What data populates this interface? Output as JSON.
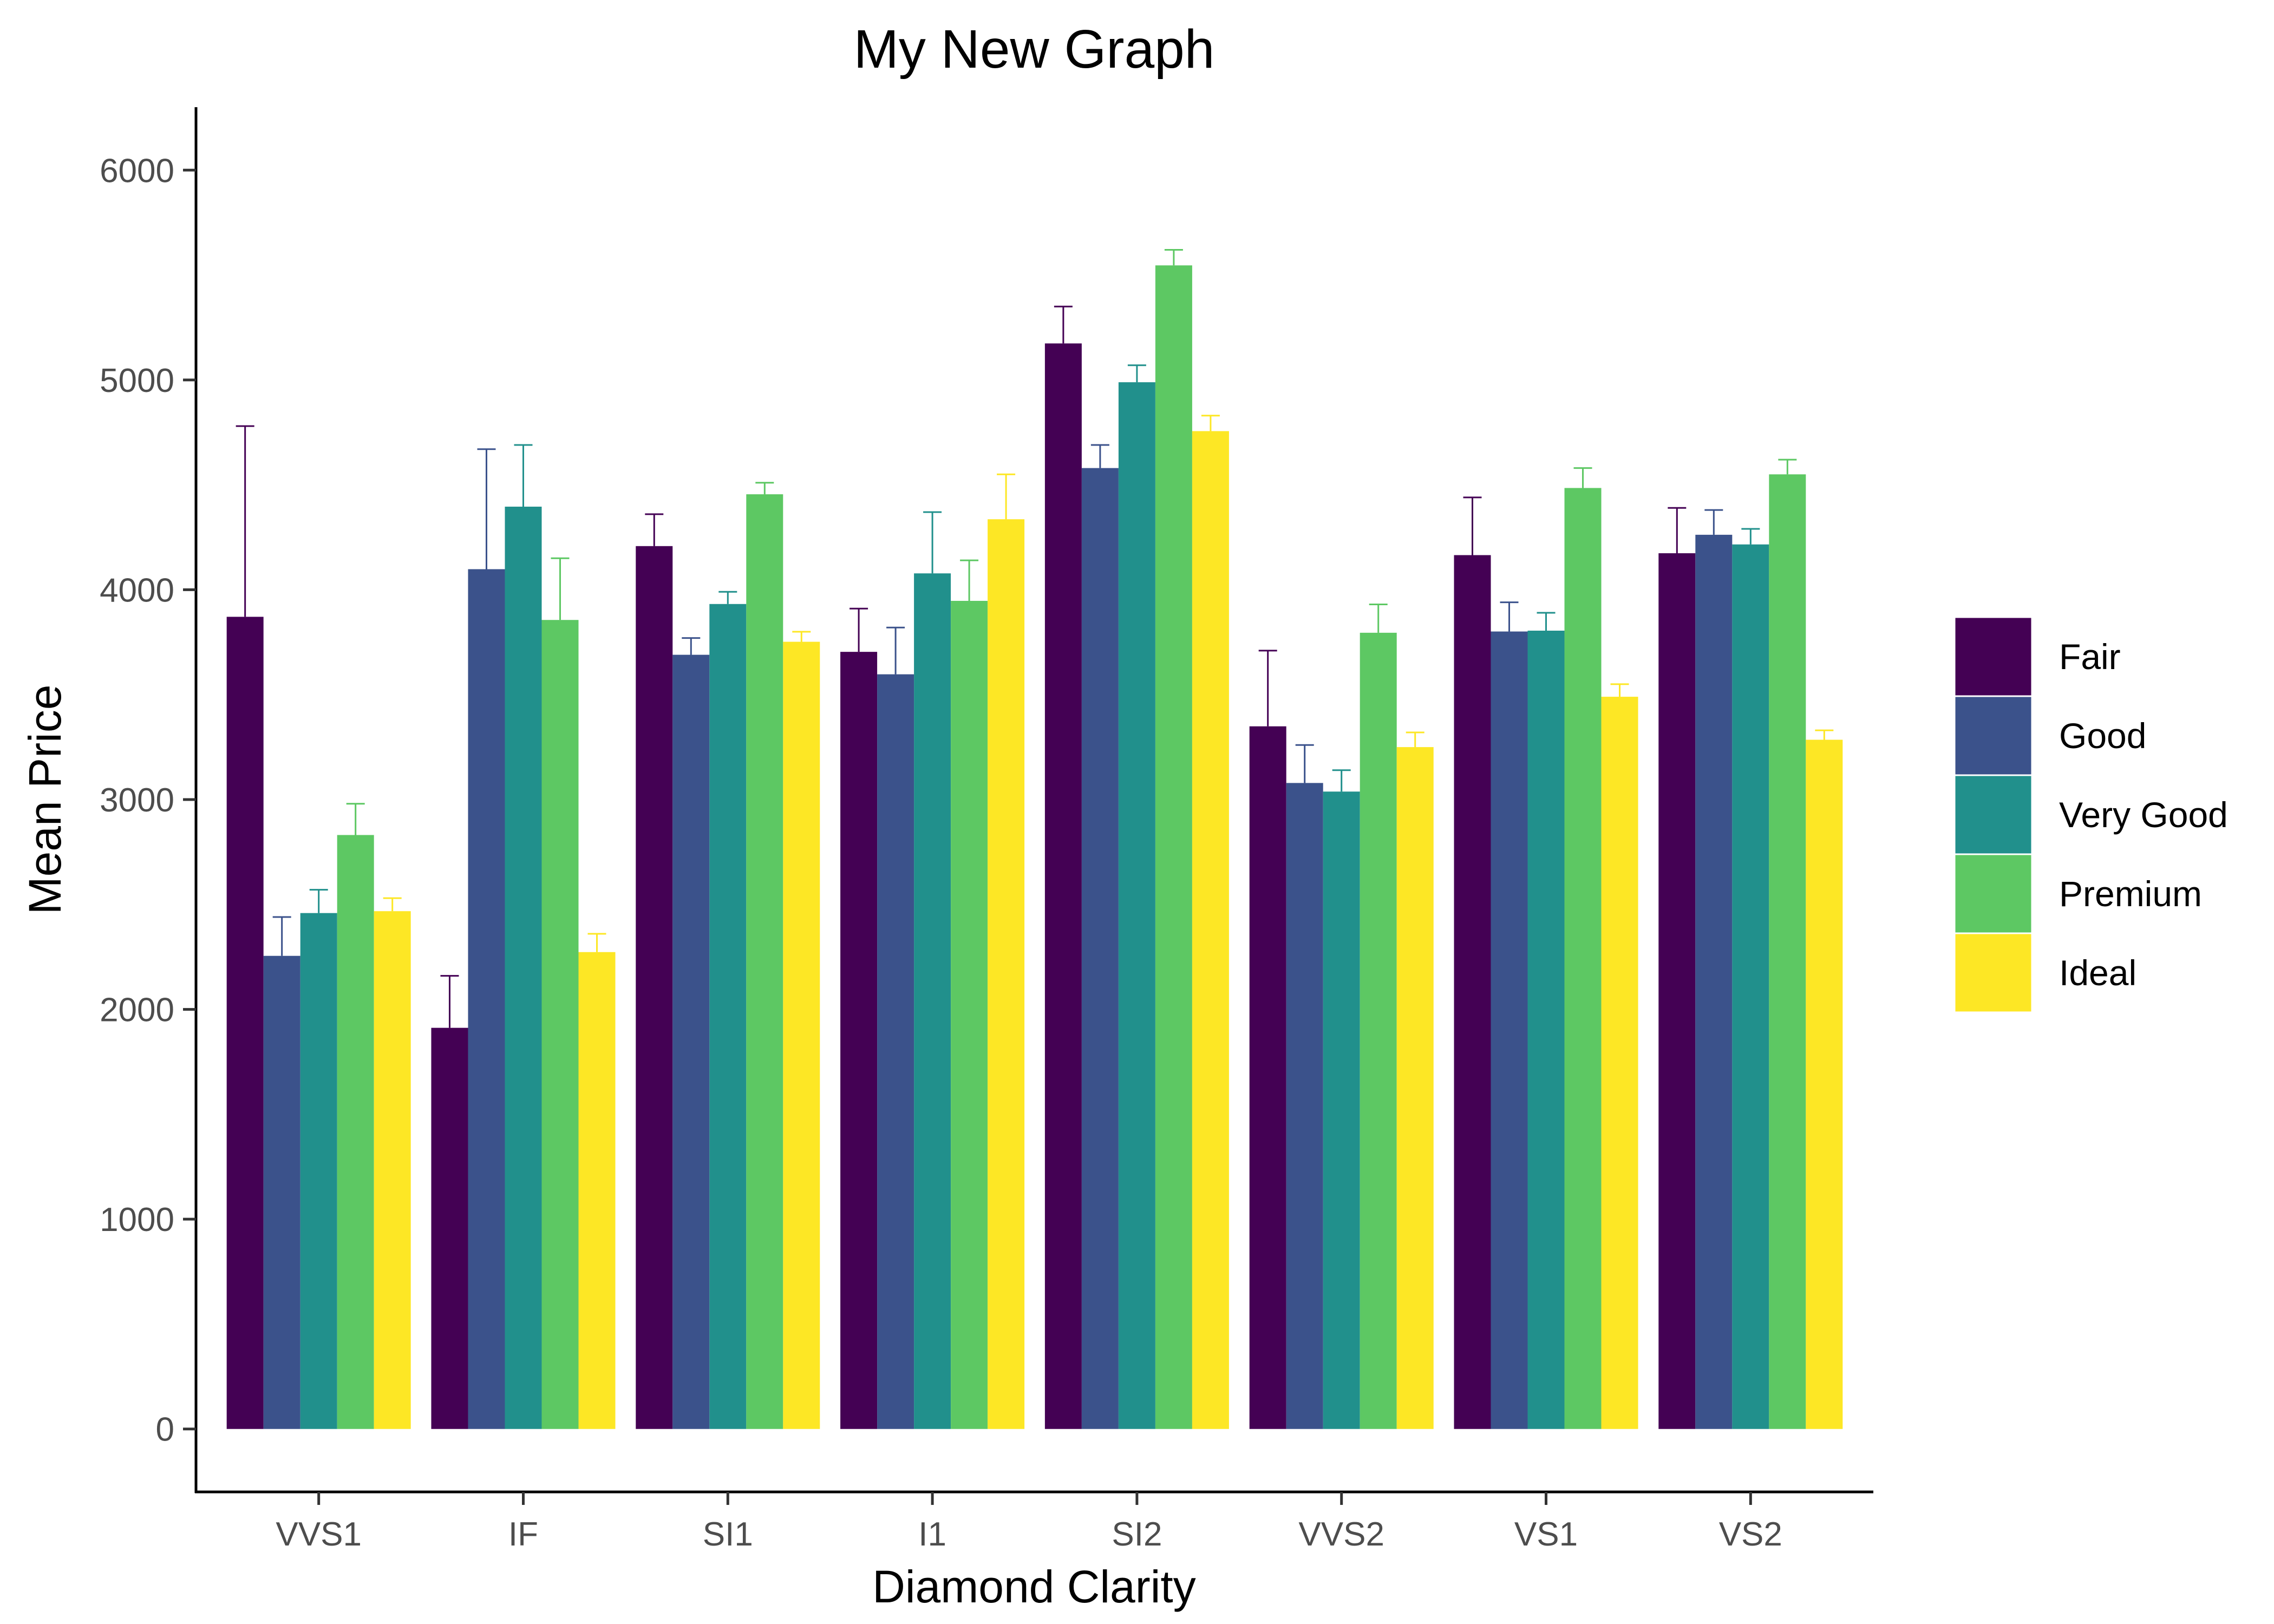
{
  "chart_data": {
    "type": "bar",
    "title": "My New Graph",
    "xlabel": "Diamond Clarity",
    "ylabel": "Mean Price",
    "categories": [
      "VVS1",
      "IF",
      "SI1",
      "I1",
      "SI2",
      "VVS2",
      "VS1",
      "VS2"
    ],
    "yticks": [
      0,
      1000,
      2000,
      3000,
      4000,
      5000,
      6000
    ],
    "ylim": [
      -300,
      6300
    ],
    "grid": false,
    "legend_position": "right",
    "series": [
      {
        "name": "Fair",
        "color": "#440154",
        "values": [
          3871,
          1912,
          4208,
          3704,
          5174,
          3349,
          4165,
          4174
        ],
        "err_upper": [
          4780,
          2160,
          4360,
          3910,
          5350,
          3710,
          4440,
          4390
        ]
      },
      {
        "name": "Good",
        "color": "#3b528b",
        "values": [
          2255,
          4098,
          3690,
          3597,
          4580,
          3079,
          3801,
          4262
        ],
        "err_upper": [
          2440,
          4670,
          3770,
          3820,
          4690,
          3260,
          3940,
          4380
        ]
      },
      {
        "name": "Very Good",
        "color": "#21908c",
        "values": [
          2459,
          4396,
          3932,
          4078,
          4989,
          3038,
          3805,
          4216
        ],
        "err_upper": [
          2570,
          4690,
          3990,
          4370,
          5070,
          3140,
          3890,
          4290
        ]
      },
      {
        "name": "Premium",
        "color": "#5dc863",
        "values": [
          2831,
          3856,
          4455,
          3947,
          5546,
          3795,
          4485,
          4550
        ],
        "err_upper": [
          2980,
          4150,
          4510,
          4140,
          5620,
          3930,
          4580,
          4620
        ]
      },
      {
        "name": "Ideal",
        "color": "#fde725",
        "values": [
          2468,
          2273,
          3752,
          4336,
          4756,
          3250,
          3490,
          3285
        ],
        "err_upper": [
          2530,
          2360,
          3800,
          4550,
          4830,
          3320,
          3550,
          3330
        ]
      }
    ]
  }
}
